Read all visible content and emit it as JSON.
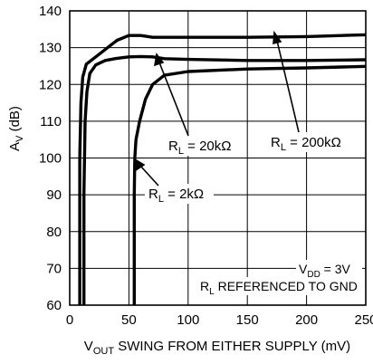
{
  "chart_data": {
    "type": "line",
    "xlabel": {
      "main": "V",
      "sub": "OUT",
      "rest": " SWING FROM EITHER SUPPLY (mV)"
    },
    "ylabel": {
      "main": "A",
      "sub": "V",
      "rest": " (dB)"
    },
    "xlim": [
      0,
      250
    ],
    "ylim": [
      60,
      140
    ],
    "x_ticks": [
      "0",
      "50",
      "100",
      "150",
      "200",
      "250"
    ],
    "y_ticks": [
      "60",
      "70",
      "80",
      "90",
      "100",
      "110",
      "120",
      "130",
      "140"
    ],
    "grid": true,
    "series": [
      {
        "name": "RL = 200kΩ",
        "label": {
          "main": "R",
          "sub": "L",
          "rest": " = 200kΩ"
        },
        "points": [
          [
            8.5,
            60
          ],
          [
            8.5,
            100
          ],
          [
            9.5,
            115
          ],
          [
            11,
            122
          ],
          [
            14,
            125.5
          ],
          [
            20,
            127
          ],
          [
            30,
            129.5
          ],
          [
            40,
            132
          ],
          [
            50,
            133.3
          ],
          [
            60,
            133.3
          ],
          [
            70,
            132.8
          ],
          [
            100,
            132.8
          ],
          [
            150,
            132.8
          ],
          [
            200,
            133
          ],
          [
            250,
            133.5
          ]
        ]
      },
      {
        "name": "RL = 20kΩ",
        "label": {
          "main": "R",
          "sub": "L",
          "rest": " = 20kΩ"
        },
        "points": [
          [
            12,
            60
          ],
          [
            12,
            90
          ],
          [
            13,
            110
          ],
          [
            14.5,
            118
          ],
          [
            17,
            123
          ],
          [
            22,
            125.3
          ],
          [
            30,
            126.5
          ],
          [
            40,
            127.1
          ],
          [
            50,
            127.5
          ],
          [
            60,
            127.6
          ],
          [
            70,
            127.5
          ],
          [
            80,
            127
          ],
          [
            100,
            126.8
          ],
          [
            150,
            126.5
          ],
          [
            200,
            126.5
          ],
          [
            250,
            126.7
          ]
        ]
      },
      {
        "name": "RL = 2kΩ",
        "label": {
          "main": "R",
          "sub": "L",
          "rest": " = 2kΩ"
        },
        "points": [
          [
            54.5,
            60
          ],
          [
            54.5,
            90
          ],
          [
            55,
            100
          ],
          [
            56,
            105
          ],
          [
            59,
            110
          ],
          [
            64,
            116
          ],
          [
            70,
            120
          ],
          [
            80,
            122.5
          ],
          [
            100,
            123.5
          ],
          [
            150,
            124.2
          ],
          [
            200,
            124.5
          ],
          [
            250,
            124.9
          ]
        ]
      }
    ],
    "annotations": {
      "vdd": {
        "main": "V",
        "sub": "DD",
        "rest": " = 3V"
      },
      "ref": {
        "main": "R",
        "sub": "L",
        "rest": " REFERENCED TO GND"
      }
    }
  }
}
